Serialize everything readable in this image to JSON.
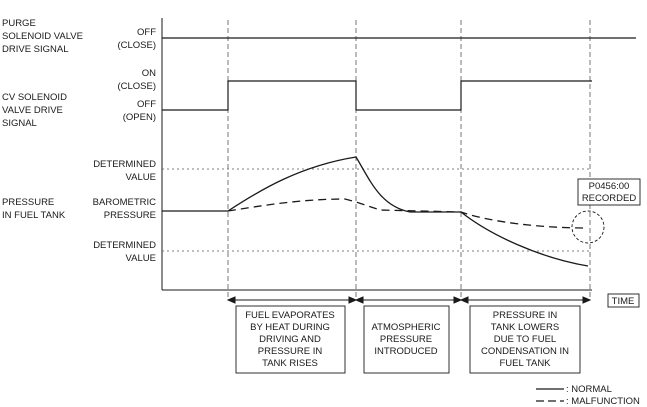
{
  "signals": {
    "purge": {
      "line1": "PURGE",
      "line2": "SOLENOID VALVE",
      "line3": "DRIVE SIGNAL"
    },
    "cv": {
      "line1": "CV SOLENOID",
      "line2": "VALVE DRIVE",
      "line3": "SIGNAL"
    },
    "pressure": {
      "line1": "PRESSURE",
      "line2": "IN FUEL TANK"
    }
  },
  "levels": {
    "purge_off": {
      "line1": "OFF",
      "line2": "(CLOSE)"
    },
    "cv_on": {
      "line1": "ON",
      "line2": "(CLOSE)"
    },
    "cv_off": {
      "line1": "OFF",
      "line2": "(OPEN)"
    },
    "upper_determined": {
      "line1": "DETERMINED",
      "line2": "VALUE"
    },
    "barometric": {
      "line1": "BAROMETRIC",
      "line2": "PRESSURE"
    },
    "lower_determined": {
      "line1": "DETERMINED",
      "line2": "VALUE"
    }
  },
  "phases": [
    {
      "lines": [
        "FUEL EVAPORATES",
        "BY HEAT DURING",
        "DRIVING AND",
        "PRESSURE IN",
        "TANK RISES"
      ]
    },
    {
      "lines": [
        "ATMOSPHERIC",
        "PRESSURE",
        "INTRODUCED"
      ]
    },
    {
      "lines": [
        "PRESSURE IN",
        "TANK LOWERS",
        "DUE TO FUEL",
        "CONDENSATION IN",
        "FUEL TANK"
      ]
    }
  ],
  "dtc": {
    "line1": "P0456:00",
    "line2": "RECORDED"
  },
  "time_label": "TIME",
  "legend": {
    "normal": ": NORMAL",
    "malfunction": ": MALFUNCTION"
  },
  "colors": {
    "line": "#1a1a1a",
    "dashed_ref": "#555555"
  }
}
